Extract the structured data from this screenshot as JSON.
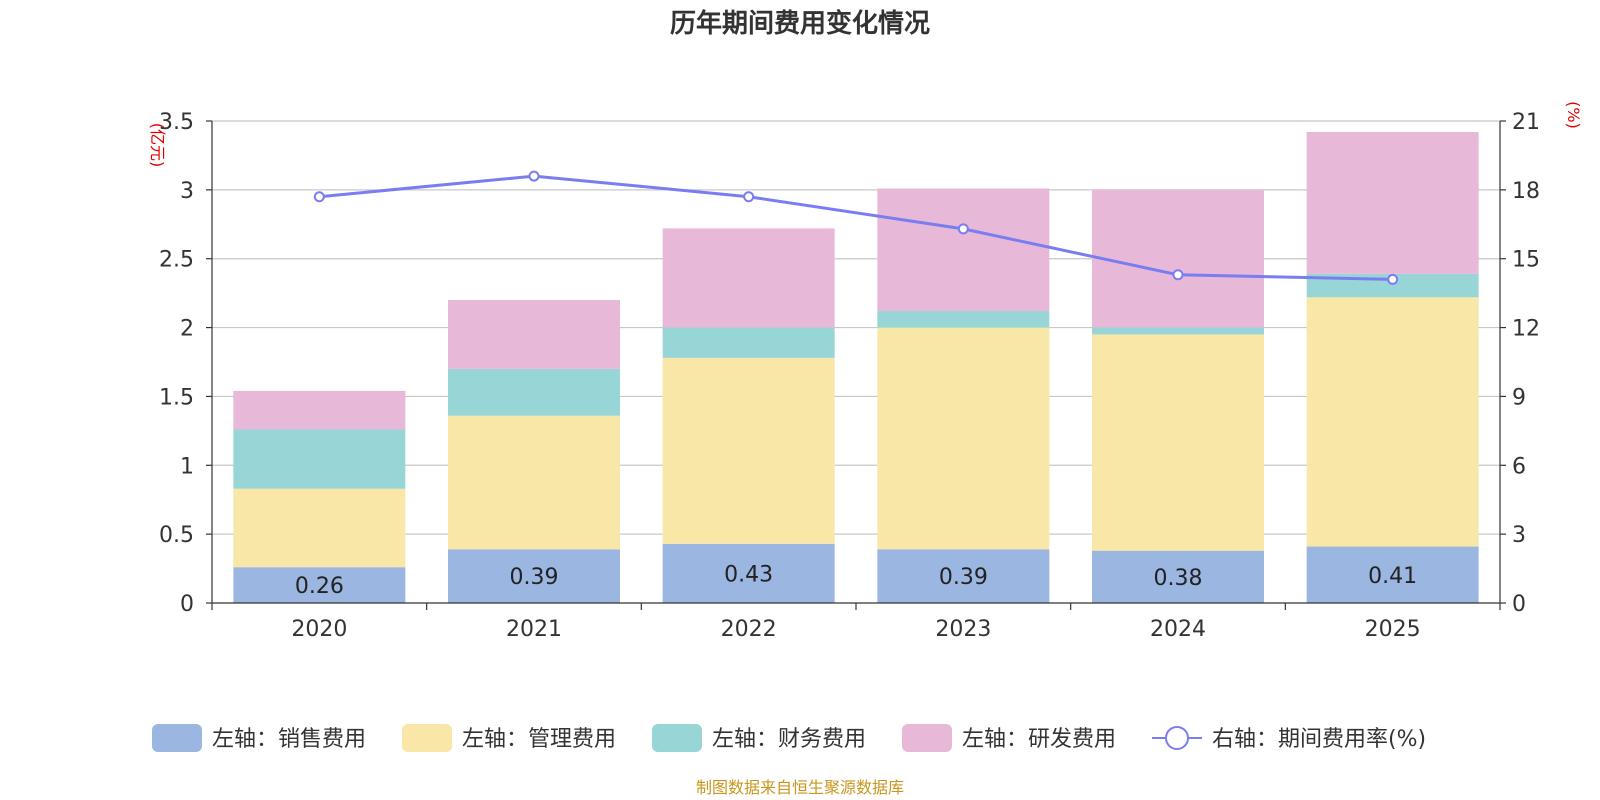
{
  "chart_data": {
    "type": "bar",
    "stacked": true,
    "title": "历年期间费用变化情况",
    "categories": [
      "2020",
      "2021",
      "2022",
      "2023",
      "2024",
      "2025"
    ],
    "left_axis": {
      "unit": "(亿元)",
      "ylim": [
        0,
        3.5
      ],
      "ticks": [
        "0",
        "0.5",
        "1",
        "1.5",
        "2",
        "2.5",
        "3",
        "3.5"
      ]
    },
    "right_axis": {
      "unit": "(%)",
      "ylim": [
        0,
        21
      ],
      "ticks": [
        "0",
        "3",
        "6",
        "9",
        "12",
        "15",
        "18",
        "21"
      ]
    },
    "series": [
      {
        "name": "左轴：销售费用",
        "axis": "left",
        "color": "#9bb7e1",
        "values": [
          0.26,
          0.39,
          0.43,
          0.39,
          0.38,
          0.41
        ],
        "labels": [
          "0.26",
          "0.39",
          "0.43",
          "0.39",
          "0.38",
          "0.41"
        ]
      },
      {
        "name": "左轴：管理费用",
        "axis": "left",
        "color": "#f8e7a7",
        "values": [
          0.57,
          0.97,
          1.35,
          1.61,
          1.57,
          1.81
        ]
      },
      {
        "name": "左轴：财务费用",
        "axis": "left",
        "color": "#98d5d6",
        "values": [
          0.43,
          0.34,
          0.22,
          0.12,
          0.05,
          0.17
        ]
      },
      {
        "name": "左轴：研发费用",
        "axis": "left",
        "color": "#e7b8d8",
        "values": [
          0.28,
          0.5,
          0.72,
          0.89,
          1.0,
          1.03
        ]
      }
    ],
    "line": {
      "name": "右轴：期间费用率(%)",
      "axis": "right",
      "color": "#7a7df0",
      "values": [
        17.7,
        18.6,
        17.7,
        16.3,
        14.3,
        14.1
      ]
    }
  },
  "source": "制图数据来自恒生聚源数据库"
}
